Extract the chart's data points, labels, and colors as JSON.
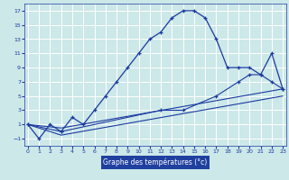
{
  "bg_color": "#cce8e8",
  "grid_color": "#ffffff",
  "line_color": "#1a3aa0",
  "xlabel": "Graphe des températures (°c)",
  "xlabel_color": "#ffffff",
  "xlabel_bg": "#2040a0",
  "xticks": [
    0,
    1,
    2,
    3,
    4,
    5,
    6,
    7,
    8,
    9,
    10,
    11,
    12,
    13,
    14,
    15,
    16,
    17,
    18,
    19,
    20,
    21,
    22,
    23
  ],
  "yticks": [
    -1,
    1,
    3,
    5,
    7,
    9,
    11,
    13,
    15,
    17
  ],
  "ylim": [
    -2.0,
    18.0
  ],
  "xlim": [
    -0.3,
    23.3
  ],
  "series1_x": [
    0,
    1,
    2,
    3,
    4,
    5,
    6,
    7,
    8,
    9,
    10,
    11,
    12,
    13,
    14,
    15,
    16,
    17,
    18,
    19,
    20,
    21,
    22,
    23
  ],
  "series1_y": [
    1,
    -1,
    1,
    0,
    2,
    1,
    3,
    5,
    7,
    9,
    11,
    13,
    14,
    16,
    17,
    17,
    16,
    13,
    9,
    9,
    9,
    8,
    11,
    6
  ],
  "series2_x": [
    0,
    3,
    12,
    14,
    17,
    19,
    20,
    21,
    22,
    23
  ],
  "series2_y": [
    1,
    0,
    3,
    3,
    5,
    7,
    8,
    8,
    7,
    6
  ],
  "series3_x": [
    0,
    3,
    23
  ],
  "series3_y": [
    1,
    0.5,
    6
  ],
  "series4_x": [
    0,
    3,
    23
  ],
  "series4_y": [
    1,
    -0.5,
    5
  ]
}
